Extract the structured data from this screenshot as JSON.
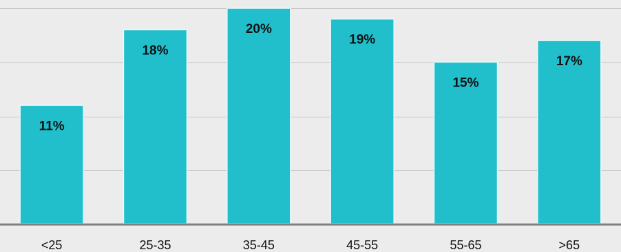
{
  "chart_data": {
    "type": "bar",
    "categories": [
      "<25",
      "25-35",
      "35-45",
      "45-55",
      "55-65",
      ">65"
    ],
    "values": [
      11,
      18,
      20,
      19,
      15,
      17
    ],
    "value_labels": [
      "11%",
      "18%",
      "20%",
      "19%",
      "15%",
      "17%"
    ],
    "title": "",
    "xlabel": "",
    "ylabel": "",
    "ylim": [
      0,
      20
    ],
    "grid": true,
    "legend": "none",
    "colors": {
      "bar": "#21bfcc",
      "background": "#ececec",
      "gridline": "#c4c4c4",
      "axis": "#808080",
      "text": "#111111"
    }
  }
}
